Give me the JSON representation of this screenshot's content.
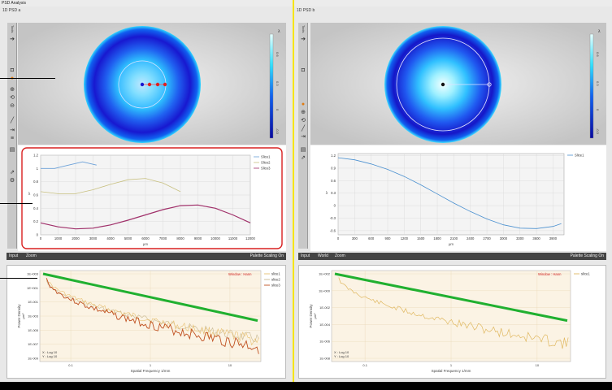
{
  "app_title": "PSD Analysis",
  "pane_a": {
    "title": "1D PSD a",
    "toolbar_label": "Tools",
    "colorbar": {
      "unit": "λ",
      "ticks": [
        "0.6",
        "0.3",
        "0",
        "-0.3"
      ]
    },
    "bottom_bar": {
      "input": "Input",
      "zoom": "Zoom",
      "palette": "Palette Scaling On"
    },
    "psd": {
      "window": "Window : Hann",
      "x_scale": "X : Log 10",
      "y_scale": "Y : Log 10"
    }
  },
  "pane_b": {
    "title": "1D PSD b",
    "toolbar_label": "Tools",
    "colorbar": {
      "unit": "λ",
      "ticks": [
        "0.6",
        "0.3",
        "0",
        "-0.3"
      ]
    },
    "bottom_bar": {
      "input": "Input",
      "world": "World",
      "zoom": "Zoom",
      "palette": "Palette Scaling On"
    },
    "psd": {
      "window": "Window : Hann",
      "x_scale": "X : Log 10",
      "y_scale": "Y : Log 10"
    }
  },
  "chart_data": [
    {
      "type": "line",
      "ylabel": "λ",
      "xlabel": "µm",
      "xlim": [
        0,
        12000
      ],
      "ylim": [
        0,
        1.2
      ],
      "xticks": [
        "0",
        "1000",
        "2000",
        "3000",
        "4000",
        "5000",
        "6000",
        "7000",
        "8000",
        "9000",
        "10000",
        "11000",
        "12000"
      ],
      "yticks": [
        "0",
        "0.2",
        "0.4",
        "0.6",
        "0.8",
        "1",
        "1.2"
      ],
      "legend_position": "top-right",
      "series": [
        {
          "name": "Slice1",
          "color": "#6aa0d8",
          "x": [
            0,
            800,
            1600,
            2400,
            3200
          ],
          "y": [
            1.0,
            1.0,
            1.05,
            1.1,
            1.05
          ]
        },
        {
          "name": "Slice2",
          "color": "#c8c080",
          "x": [
            0,
            1000,
            2000,
            3000,
            4000,
            5000,
            6000,
            7000,
            8000
          ],
          "y": [
            0.65,
            0.62,
            0.62,
            0.68,
            0.76,
            0.83,
            0.85,
            0.78,
            0.65
          ]
        },
        {
          "name": "Slice3",
          "color": "#a0306a",
          "x": [
            0,
            1000,
            2000,
            3000,
            4000,
            5000,
            6000,
            7000,
            8000,
            9000,
            10000,
            11000,
            12000
          ],
          "y": [
            0.18,
            0.12,
            0.09,
            0.1,
            0.15,
            0.22,
            0.3,
            0.38,
            0.44,
            0.45,
            0.4,
            0.3,
            0.18
          ]
        }
      ]
    },
    {
      "type": "line",
      "ylabel": "λ",
      "xlabel": "µm",
      "xlim": [
        0,
        4100
      ],
      "ylim": [
        -0.7,
        1.25
      ],
      "xticks": [
        "0",
        "300",
        "600",
        "900",
        "1200",
        "1500",
        "1800",
        "2100",
        "2400",
        "2700",
        "3000",
        "3300",
        "3600",
        "3900"
      ],
      "yticks": [
        "-0.6",
        "-0.3",
        "0",
        "0.3",
        "0.6",
        "0.9",
        "1.2"
      ],
      "legend_position": "top-right",
      "series": [
        {
          "name": "Slice1",
          "color": "#4a90d0",
          "x": [
            0,
            300,
            600,
            900,
            1200,
            1500,
            1800,
            2100,
            2400,
            2700,
            3000,
            3300,
            3600,
            3900,
            4050
          ],
          "y": [
            1.15,
            1.1,
            1.0,
            0.87,
            0.7,
            0.5,
            0.28,
            0.06,
            -0.14,
            -0.32,
            -0.46,
            -0.54,
            -0.55,
            -0.5,
            -0.43
          ]
        }
      ]
    },
    {
      "type": "line",
      "xlabel": "Spatial Frequency 1/mm",
      "ylabel": "Power Density",
      "ylabel2": "µm³",
      "x_scale": "log",
      "y_scale": "log",
      "xticks": [
        "0.1",
        "1",
        "10"
      ],
      "yticks": [
        "1E+003",
        "1E+001",
        "1E-001",
        "1E-003",
        "1E-005",
        "1E-007",
        "1E-009"
      ],
      "legend_position": "top-right",
      "series": [
        {
          "name": "slice1",
          "color": "#e8c070"
        },
        {
          "name": "slice2",
          "color": "#c8b890"
        },
        {
          "name": "slice3",
          "color": "#c05020"
        }
      ]
    },
    {
      "type": "line",
      "xlabel": "Spatial Frequency 1/mm",
      "ylabel": "Power Density",
      "ylabel2": "µm³",
      "x_scale": "log",
      "y_scale": "log",
      "xticks": [
        "0.1",
        "1",
        "10"
      ],
      "yticks": [
        "1E+002",
        "1E+000",
        "1E-002",
        "1E-004",
        "1E-006",
        "1E-008"
      ],
      "legend_position": "top-right",
      "series": [
        {
          "name": "slice1",
          "color": "#e0b860"
        }
      ]
    }
  ]
}
